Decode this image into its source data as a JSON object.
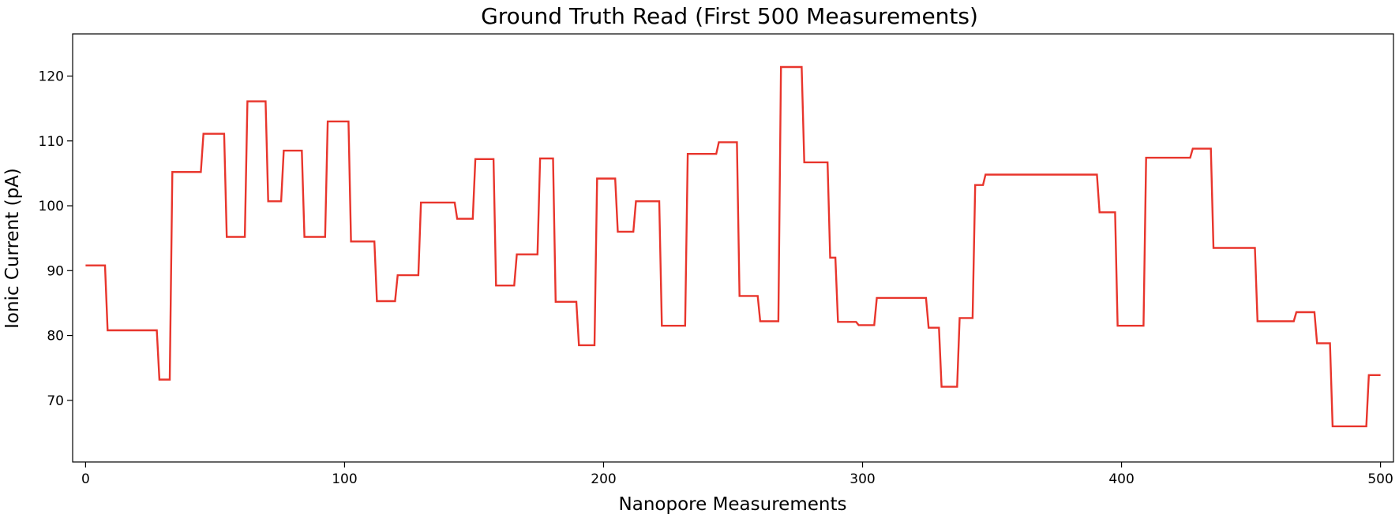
{
  "chart_data": {
    "type": "line",
    "title": "Ground Truth Read (First 500 Measurements)",
    "xlabel": "Nanopore Measurements",
    "ylabel": "Ionic Current (pA)",
    "xlim": [
      -5,
      505
    ],
    "ylim": [
      60.5,
      126.5
    ],
    "xticks": [
      0,
      100,
      200,
      300,
      400,
      500
    ],
    "yticks": [
      70,
      80,
      90,
      100,
      110,
      120
    ],
    "grid": false,
    "line_color": "#e8352c",
    "series": [
      {
        "steps": [
          [
            0,
            90.8
          ],
          [
            8,
            80.8
          ],
          [
            28,
            73.2
          ],
          [
            33,
            105.2
          ],
          [
            45,
            111.1
          ],
          [
            54,
            95.2
          ],
          [
            62,
            116.1
          ],
          [
            70,
            100.7
          ],
          [
            76,
            108.5
          ],
          [
            84,
            95.2
          ],
          [
            93,
            113.0
          ],
          [
            102,
            94.5
          ],
          [
            112,
            85.3
          ],
          [
            120,
            89.3
          ],
          [
            129,
            100.5
          ],
          [
            143,
            98.0
          ],
          [
            150,
            107.2
          ],
          [
            158,
            87.7
          ],
          [
            166,
            92.5
          ],
          [
            175,
            107.3
          ],
          [
            181,
            85.2
          ],
          [
            190,
            78.5
          ],
          [
            197,
            104.2
          ],
          [
            205,
            96.0
          ],
          [
            212,
            100.7
          ],
          [
            222,
            81.5
          ],
          [
            232,
            108.0
          ],
          [
            244,
            109.8
          ],
          [
            252,
            86.1
          ],
          [
            260,
            82.2
          ],
          [
            268,
            121.4
          ],
          [
            277,
            106.7
          ],
          [
            287,
            92.0
          ],
          [
            290,
            82.1
          ],
          [
            298,
            81.6
          ],
          [
            305,
            85.8
          ],
          [
            325,
            81.2
          ],
          [
            330,
            72.1
          ],
          [
            337,
            82.7
          ],
          [
            343,
            103.2
          ],
          [
            347,
            104.8
          ],
          [
            391,
            99.0
          ],
          [
            398,
            81.5
          ],
          [
            409,
            107.4
          ],
          [
            427,
            108.8
          ],
          [
            435,
            93.5
          ],
          [
            452,
            82.2
          ],
          [
            467,
            83.6
          ],
          [
            475,
            78.8
          ],
          [
            481,
            66.0
          ],
          [
            495,
            73.9
          ],
          [
            498,
            73.9
          ]
        ],
        "x_end": 500
      }
    ]
  }
}
